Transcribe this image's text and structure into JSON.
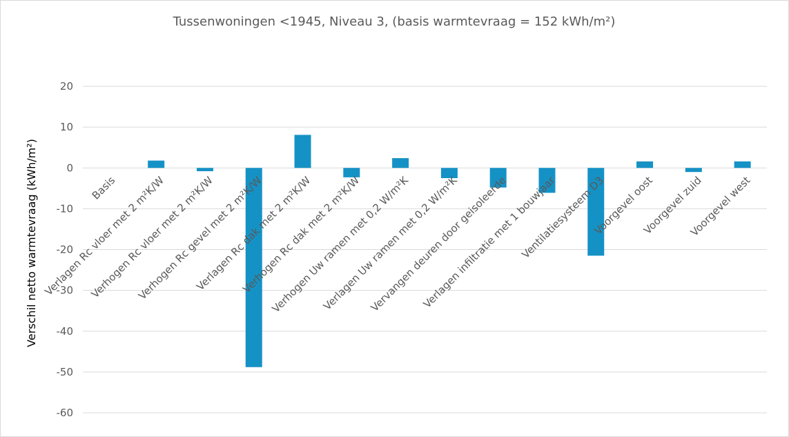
{
  "chart_data": {
    "type": "bar",
    "title": "Tussenwoningen <1945, Niveau 3, (basis warmtevraag = 152 kWh/m²)",
    "ylabel": "Verschil netto warmtevraag (kWh/m²)",
    "xlabel": "",
    "ylim": [
      -60,
      20
    ],
    "yticks": [
      20,
      10,
      0,
      -10,
      -20,
      -30,
      -40,
      -50,
      -60
    ],
    "grid": true,
    "bar_color": "#1592c5",
    "categories": [
      "Basis",
      "Verlagen Rc vloer met 2 m²K/W",
      "Verhogen Rc vloer met 2 m²K/W",
      "Verhogen Rc gevel met 2 m²K/W",
      "Verlagen Rc dak met 2 m²K/W",
      "Verhogen Rc dak met 2 m²K/W",
      "Verhogen Uw ramen met 0,2 W/m²K",
      "Verlagen Uw ramen met 0,2 W/m²K",
      "Vervangen deuren door geisoleerde",
      "Verlagen infiltratie met 1 bouwjaar",
      "Ventilatiesysteem D3",
      "Voorgevel oost",
      "Voorgevel zuid",
      "Voorgevel west"
    ],
    "values": [
      0,
      1.8,
      -0.8,
      -48.8,
      8.1,
      -2.3,
      2.4,
      -2.5,
      -4.8,
      -6.1,
      -21.5,
      1.6,
      -1.0,
      1.6
    ]
  }
}
